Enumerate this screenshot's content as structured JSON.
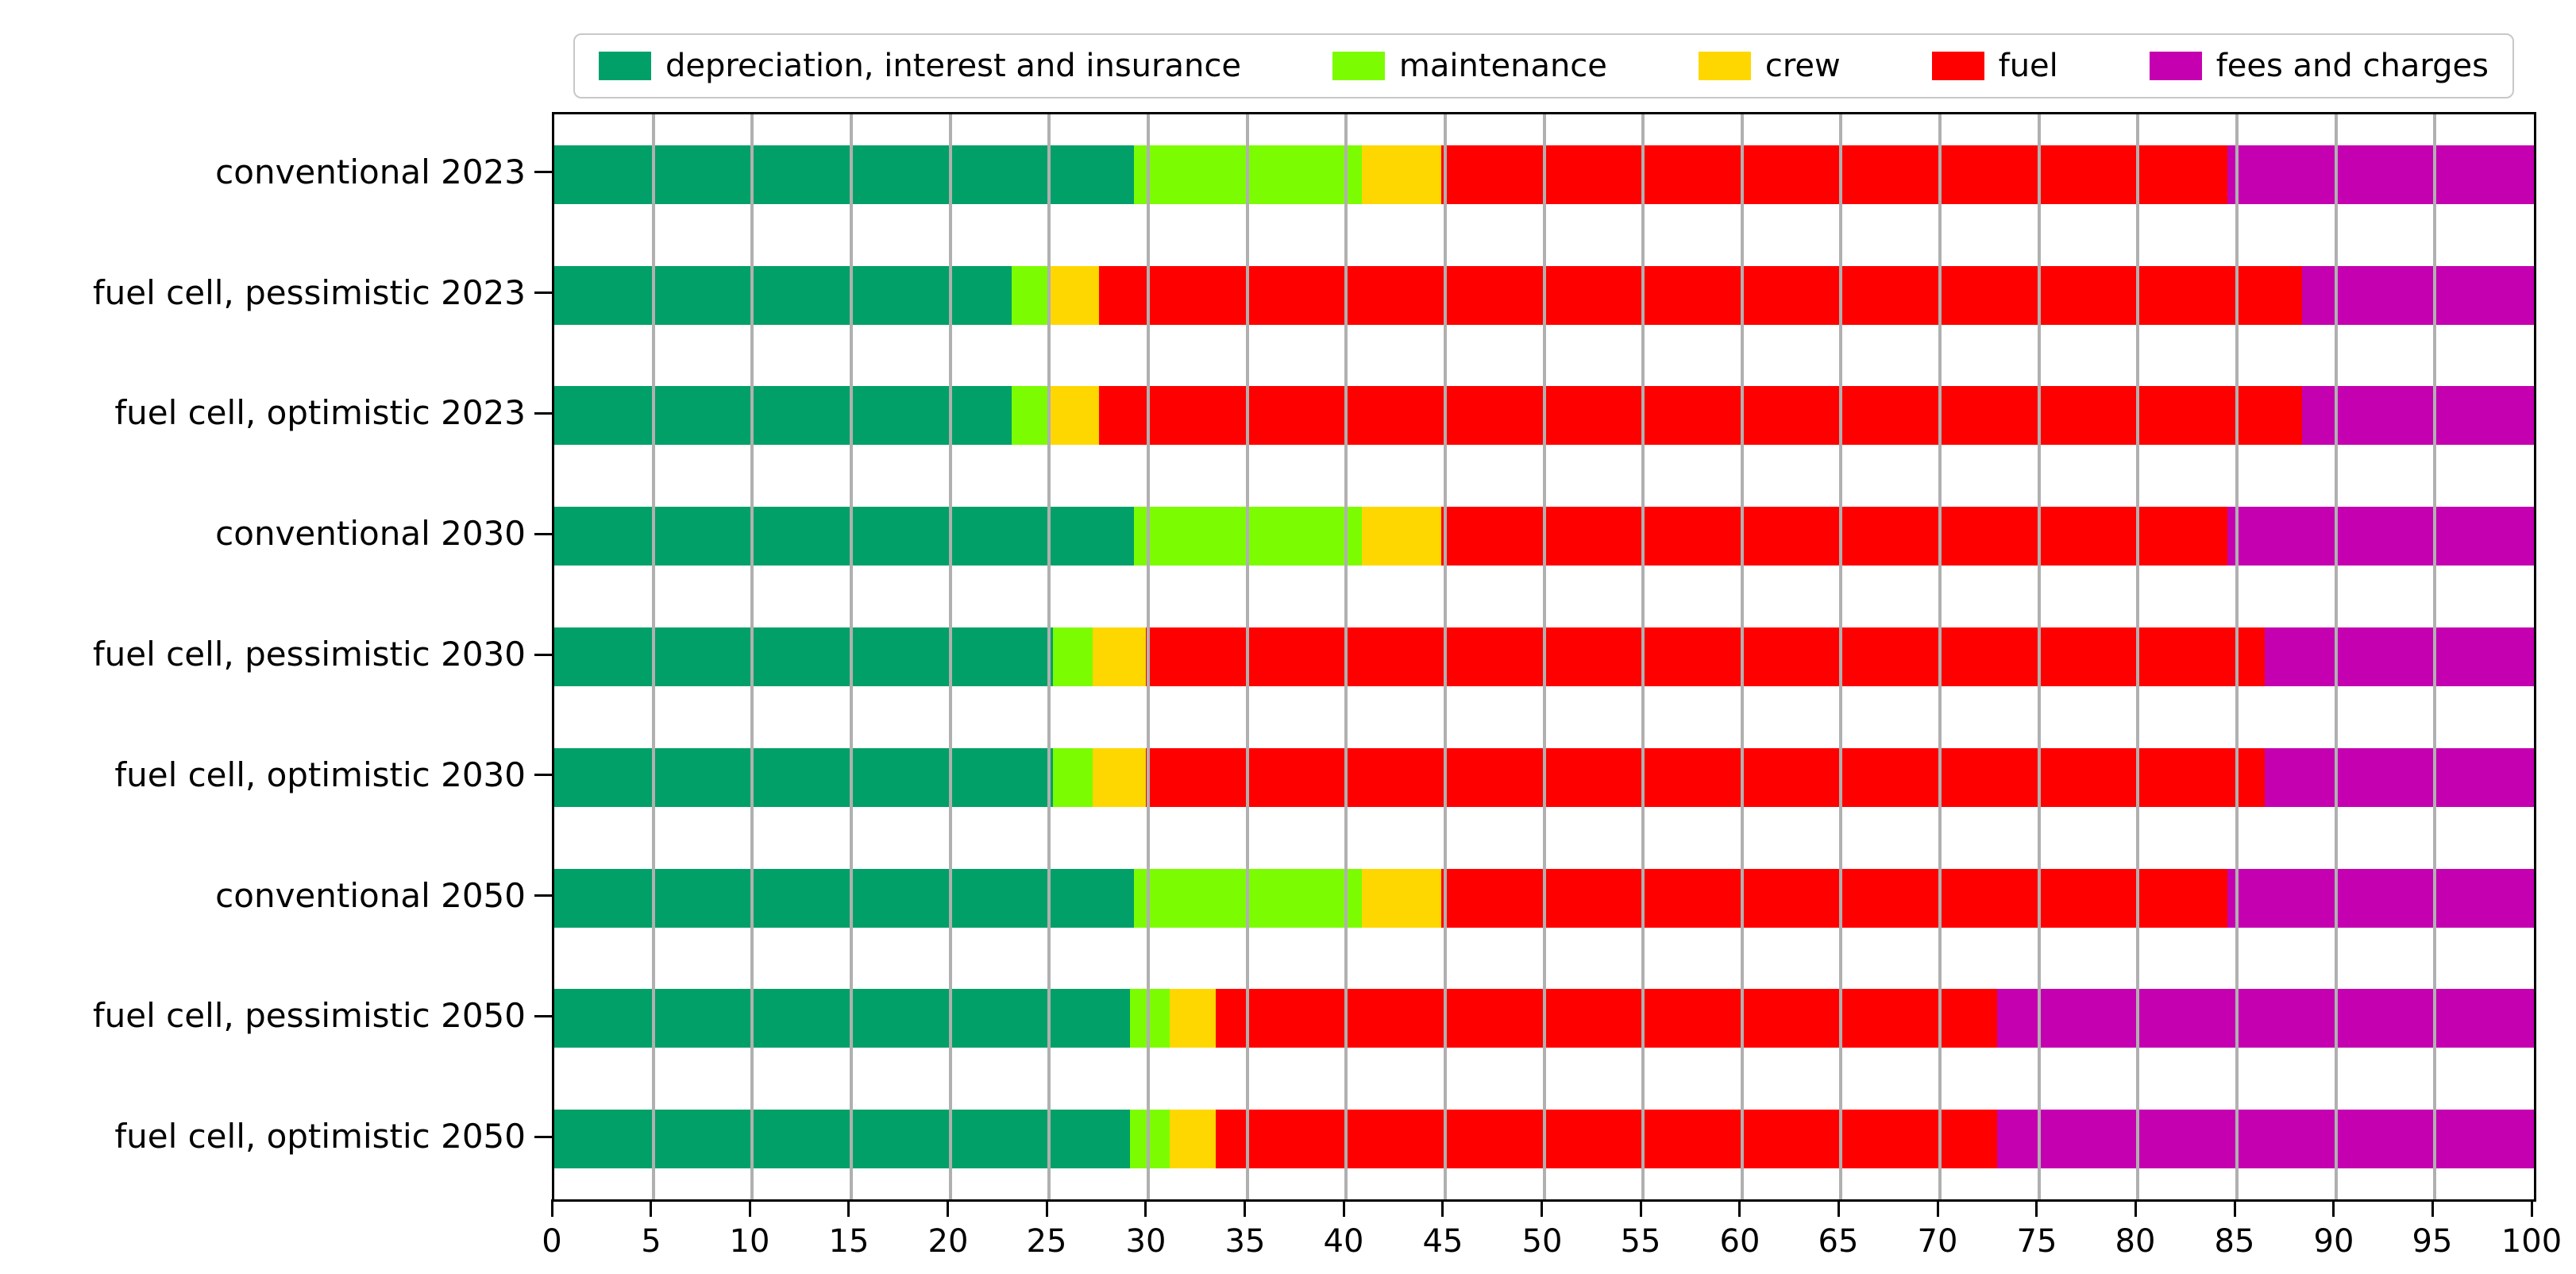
{
  "chart_data": {
    "type": "bar",
    "orientation": "horizontal",
    "stacked": true,
    "title": "",
    "xlabel": "",
    "ylabel": "",
    "xlim": [
      0,
      100
    ],
    "xticks": [
      0,
      5,
      10,
      15,
      20,
      25,
      30,
      35,
      40,
      45,
      50,
      55,
      60,
      65,
      70,
      75,
      80,
      85,
      90,
      95,
      100
    ],
    "grid": "vertical",
    "gridline_color": "#b0b0b0",
    "legend_position": "top",
    "categories": [
      "conventional 2023",
      "fuel cell, pessimistic 2023",
      "fuel cell, optimistic 2023",
      "conventional 2030",
      "fuel cell, pessimistic 2030",
      "fuel cell, optimistic 2030",
      "conventional 2050",
      "fuel cell, pessimistic 2050",
      "fuel cell, optimistic 2050"
    ],
    "series": [
      {
        "name": "depreciation, interest and insurance",
        "color": "#00a068",
        "values": [
          29.3,
          23.1,
          23.1,
          29.3,
          25.2,
          25.2,
          29.3,
          29.1,
          29.1
        ]
      },
      {
        "name": "maintenance",
        "color": "#7cfc00",
        "values": [
          11.5,
          1.8,
          1.8,
          11.5,
          2.0,
          2.0,
          11.5,
          2.0,
          2.0
        ]
      },
      {
        "name": "crew",
        "color": "#ffd700",
        "values": [
          4.0,
          2.6,
          2.6,
          4.0,
          2.7,
          2.7,
          4.0,
          2.3,
          2.3
        ]
      },
      {
        "name": "fuel",
        "color": "#ff0000",
        "values": [
          39.7,
          60.8,
          60.8,
          39.7,
          56.5,
          56.5,
          39.7,
          39.5,
          39.5
        ]
      },
      {
        "name": "fees and charges",
        "color": "#c400b0",
        "values": [
          15.5,
          11.7,
          11.7,
          15.5,
          13.6,
          13.6,
          15.5,
          27.1,
          27.1
        ]
      }
    ]
  }
}
